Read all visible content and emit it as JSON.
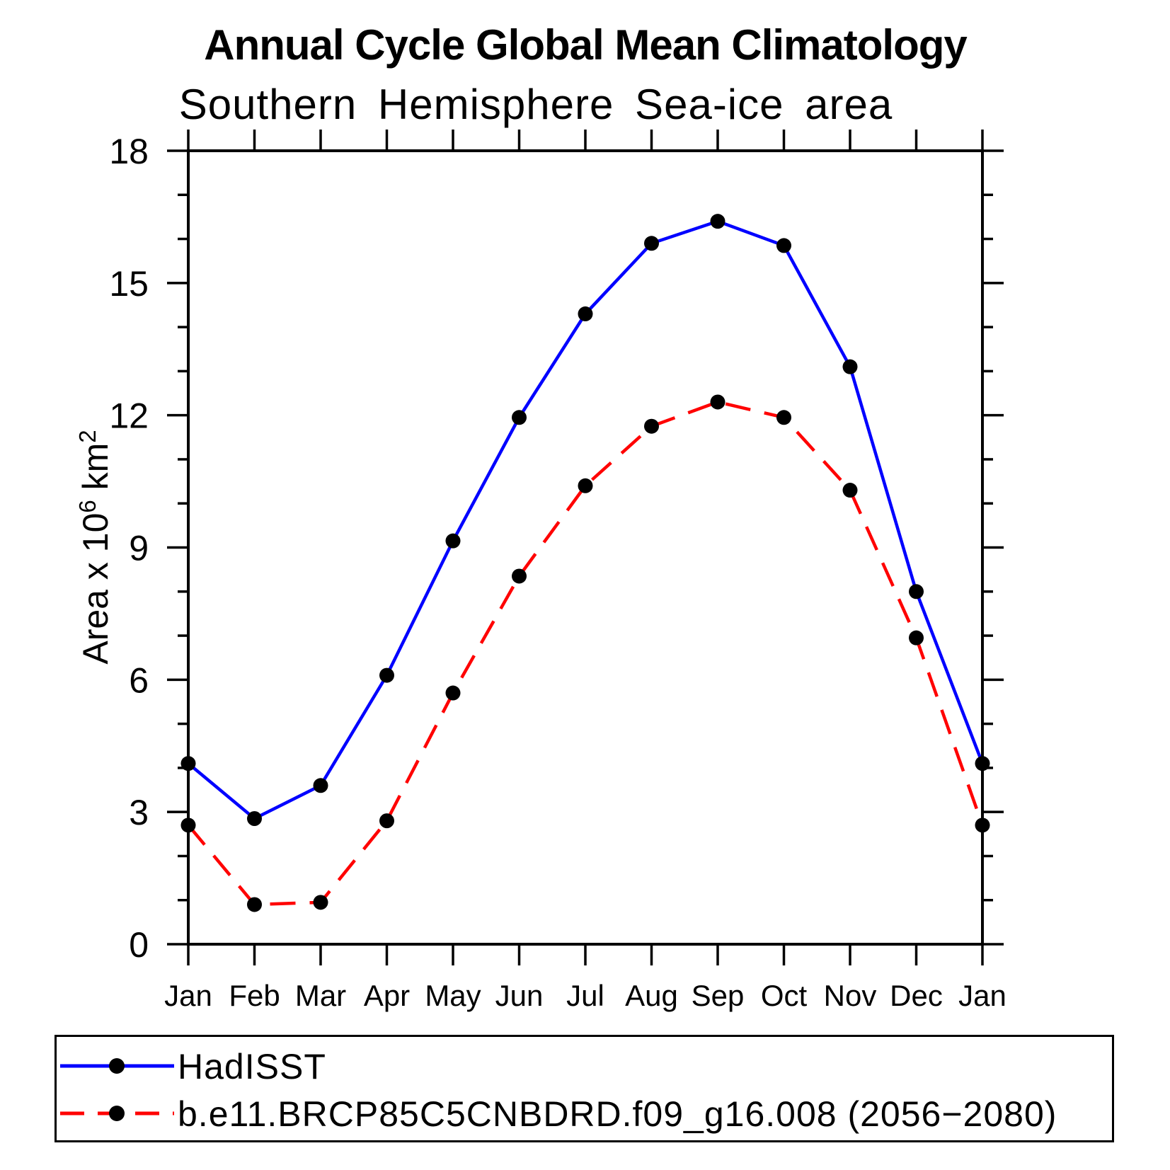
{
  "chart_data": {
    "type": "line",
    "title": "Annual Cycle Global Mean Climatology",
    "subtitle": "Southern Hemisphere Sea-ice area",
    "ylabel": {
      "prefix": "Area x 10",
      "sup1": "6",
      "mid": " km",
      "sup2": "2"
    },
    "x_tick_labels": [
      "Jan",
      "Feb",
      "Mar",
      "Apr",
      "May",
      "Jun",
      "Jul",
      "Aug",
      "Sep",
      "Oct",
      "Nov",
      "Dec",
      "Jan"
    ],
    "y_ticks": [
      0,
      3,
      6,
      9,
      12,
      15,
      18
    ],
    "ylim": [
      0,
      18
    ],
    "y_minor_step": 1,
    "grid": false,
    "legend_position": "bottom",
    "series": [
      {
        "name": "HadISST",
        "color": "#0000ff",
        "style": "solid",
        "marker": "circle",
        "marker_color": "#000000",
        "values": [
          4.1,
          2.85,
          3.6,
          6.1,
          9.15,
          11.95,
          14.3,
          15.9,
          16.4,
          15.85,
          13.1,
          8.0,
          4.1
        ]
      },
      {
        "name": "b.e11.BRCP85C5CNBDRD.f09_g16.008 (2056−2080)",
        "color": "#ff0000",
        "style": "dashed",
        "marker": "circle",
        "marker_color": "#000000",
        "values": [
          2.7,
          0.9,
          0.95,
          2.8,
          5.7,
          8.35,
          10.4,
          11.75,
          12.3,
          11.95,
          10.3,
          6.95,
          2.7
        ]
      }
    ]
  },
  "colors": {
    "axis": "#000000",
    "background": "#ffffff",
    "series_blue": "#0000ff",
    "series_red": "#ff0000",
    "marker": "#000000"
  }
}
